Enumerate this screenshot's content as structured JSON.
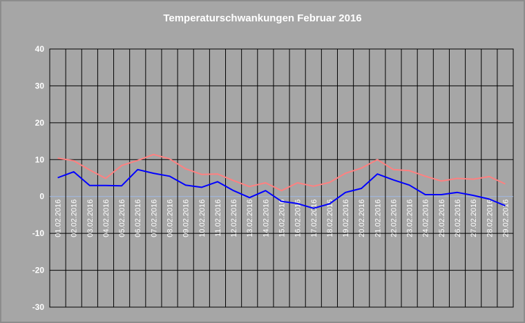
{
  "chart_data": {
    "type": "line",
    "title": "Temperaturschwankungen Februar 2016",
    "xlabel": "",
    "ylabel": "",
    "ylim": [
      -30,
      40
    ],
    "yticks": [
      40,
      30,
      20,
      10,
      0,
      -10,
      -20,
      -30
    ],
    "grid": true,
    "legend": "none",
    "colors": {
      "background": "#a6a6a6",
      "grid": "#000000",
      "zero_line": "#9fb8e6",
      "max_series": "#ff8080",
      "min_series": "#0000ff"
    },
    "categories": [
      "01.02.2016",
      "02.02.2016",
      "03.02.2016",
      "04.02.2016",
      "05.02.2016",
      "06.02.2016",
      "07.02.2016",
      "08.02.2016",
      "09.02.2016",
      "10.02.2016",
      "11.02.2016",
      "12.02.2016",
      "13.02.2016",
      "14.02.2016",
      "15.02.2016",
      "16.02.2016",
      "17.02.2016",
      "18.02.2016",
      "19.02.2016",
      "20.02.2016",
      "21.02.2016",
      "22.02.2016",
      "23.02.2016",
      "24.02.2016",
      "25.02.2016",
      "26.02.2016",
      "27.02.2016",
      "28.02.2016",
      "29.02.2016"
    ],
    "series": [
      {
        "values": [
          10.4,
          9.7,
          7.2,
          4.9,
          8.4,
          9.8,
          11.4,
          10.2,
          7.5,
          6.0,
          6.1,
          4.3,
          2.7,
          3.7,
          1.6,
          3.7,
          2.8,
          3.8,
          6.3,
          7.7,
          10.0,
          7.3,
          7.0,
          5.5,
          4.2,
          4.9,
          4.7,
          5.4,
          3.4
        ]
      },
      {
        "values": [
          5.1,
          6.7,
          3.0,
          3.0,
          2.9,
          7.3,
          6.3,
          5.5,
          3.1,
          2.5,
          4.0,
          1.6,
          -0.3,
          1.6,
          -1.3,
          -1.9,
          -3.2,
          -2.0,
          1.1,
          2.2,
          6.1,
          4.5,
          3.1,
          0.5,
          0.5,
          1.1,
          0.3,
          -0.7,
          -2.5
        ]
      }
    ]
  }
}
